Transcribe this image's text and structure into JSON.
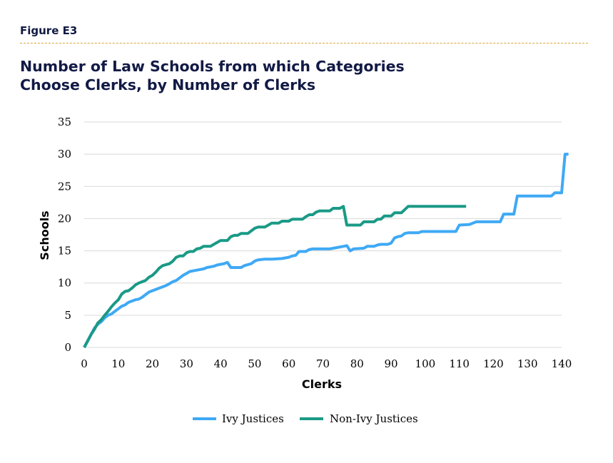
{
  "figure_label": "Figure E3",
  "title_lines": [
    "Number of Law Schools from which Categories",
    "Choose Clerks, by Number of Clerks"
  ],
  "colors": {
    "accent": "#d9a63a",
    "ivy": "#3fa9f5",
    "nonivy": "#1a9a86",
    "grid": "#d9d9d9",
    "title": "#121a45"
  },
  "chart_data": {
    "type": "line",
    "xlabel": "Clerks",
    "ylabel": "Schools",
    "xlim": [
      0,
      140
    ],
    "ylim": [
      0,
      35
    ],
    "x_ticks": [
      0,
      10,
      20,
      30,
      40,
      50,
      60,
      70,
      80,
      90,
      100,
      110,
      120,
      130,
      140
    ],
    "y_ticks": [
      0,
      5,
      10,
      15,
      20,
      25,
      30,
      35
    ],
    "grid": "horizontal",
    "legend_position": "bottom",
    "series": [
      {
        "name": "Ivy Justices",
        "color": "#3fa9f5",
        "points": [
          [
            0,
            0
          ],
          [
            1,
            1
          ],
          [
            2,
            2
          ],
          [
            3,
            3
          ],
          [
            4,
            3.6
          ],
          [
            5,
            4
          ],
          [
            6,
            4.6
          ],
          [
            7,
            5
          ],
          [
            8,
            5.2
          ],
          [
            9,
            5.6
          ],
          [
            10,
            6
          ],
          [
            11,
            6.4
          ],
          [
            12,
            6.6
          ],
          [
            13,
            7
          ],
          [
            14,
            7.2
          ],
          [
            15,
            7.4
          ],
          [
            16,
            7.5
          ],
          [
            17,
            7.8
          ],
          [
            18,
            8.2
          ],
          [
            19,
            8.6
          ],
          [
            20,
            8.8
          ],
          [
            22,
            9.2
          ],
          [
            24,
            9.6
          ],
          [
            25,
            9.9
          ],
          [
            26,
            10.2
          ],
          [
            27,
            10.4
          ],
          [
            28,
            10.8
          ],
          [
            29,
            11.2
          ],
          [
            30,
            11.5
          ],
          [
            31,
            11.8
          ],
          [
            33,
            12
          ],
          [
            35,
            12.2
          ],
          [
            36,
            12.4
          ],
          [
            38,
            12.6
          ],
          [
            39,
            12.8
          ],
          [
            41,
            13
          ],
          [
            42,
            13.2
          ],
          [
            43,
            12.4
          ],
          [
            46,
            12.4
          ],
          [
            47,
            12.7
          ],
          [
            49,
            13
          ],
          [
            50,
            13.4
          ],
          [
            51,
            13.6
          ],
          [
            53,
            13.7
          ],
          [
            55,
            13.7
          ],
          [
            58,
            13.8
          ],
          [
            60,
            14
          ],
          [
            61,
            14.2
          ],
          [
            62,
            14.3
          ],
          [
            63,
            14.9
          ],
          [
            65,
            14.9
          ],
          [
            66,
            15.2
          ],
          [
            67,
            15.3
          ],
          [
            68,
            15.3
          ],
          [
            72,
            15.3
          ],
          [
            74,
            15.5
          ],
          [
            76,
            15.7
          ],
          [
            77,
            15.8
          ],
          [
            78,
            15
          ],
          [
            79,
            15.3
          ],
          [
            82,
            15.4
          ],
          [
            83,
            15.7
          ],
          [
            85,
            15.7
          ],
          [
            86,
            15.9
          ],
          [
            87,
            16
          ],
          [
            89,
            16
          ],
          [
            90,
            16.2
          ],
          [
            91,
            17
          ],
          [
            92,
            17.2
          ],
          [
            93,
            17.3
          ],
          [
            94,
            17.7
          ],
          [
            95,
            17.8
          ],
          [
            98,
            17.8
          ],
          [
            99,
            18
          ],
          [
            109,
            18
          ],
          [
            110,
            19
          ],
          [
            113,
            19.1
          ],
          [
            114,
            19.3
          ],
          [
            115,
            19.5
          ],
          [
            122,
            19.5
          ],
          [
            123,
            20.7
          ],
          [
            126,
            20.7
          ],
          [
            127,
            23.5
          ],
          [
            137,
            23.5
          ],
          [
            138,
            24
          ],
          [
            140,
            24
          ],
          [
            141,
            30
          ],
          [
            142,
            30
          ]
        ]
      },
      {
        "name": "Non-Ivy Justices",
        "color": "#1a9a86",
        "points": [
          [
            0,
            0
          ],
          [
            1,
            1
          ],
          [
            2,
            2
          ],
          [
            3,
            2.8
          ],
          [
            4,
            3.8
          ],
          [
            5,
            4.3
          ],
          [
            6,
            5
          ],
          [
            7,
            5.6
          ],
          [
            8,
            6.3
          ],
          [
            9,
            6.9
          ],
          [
            10,
            7.4
          ],
          [
            11,
            8.3
          ],
          [
            12,
            8.7
          ],
          [
            13,
            8.8
          ],
          [
            14,
            9.2
          ],
          [
            15,
            9.7
          ],
          [
            16,
            10
          ],
          [
            17,
            10.2
          ],
          [
            18,
            10.4
          ],
          [
            19,
            10.9
          ],
          [
            20,
            11.2
          ],
          [
            21,
            11.7
          ],
          [
            22,
            12.3
          ],
          [
            23,
            12.7
          ],
          [
            25,
            13
          ],
          [
            26,
            13.4
          ],
          [
            27,
            14
          ],
          [
            28,
            14.2
          ],
          [
            29,
            14.2
          ],
          [
            30,
            14.7
          ],
          [
            31,
            14.9
          ],
          [
            32,
            14.9
          ],
          [
            33,
            15.3
          ],
          [
            34,
            15.4
          ],
          [
            35,
            15.7
          ],
          [
            37,
            15.7
          ],
          [
            38,
            16
          ],
          [
            39,
            16.3
          ],
          [
            40,
            16.6
          ],
          [
            42,
            16.6
          ],
          [
            43,
            17.2
          ],
          [
            44,
            17.4
          ],
          [
            45,
            17.4
          ],
          [
            46,
            17.7
          ],
          [
            48,
            17.7
          ],
          [
            49,
            18.1
          ],
          [
            50,
            18.5
          ],
          [
            51,
            18.7
          ],
          [
            53,
            18.7
          ],
          [
            54,
            19
          ],
          [
            55,
            19.3
          ],
          [
            57,
            19.3
          ],
          [
            58,
            19.6
          ],
          [
            60,
            19.6
          ],
          [
            61,
            19.9
          ],
          [
            64,
            19.9
          ],
          [
            65,
            20.3
          ],
          [
            66,
            20.6
          ],
          [
            67,
            20.6
          ],
          [
            68,
            21
          ],
          [
            69,
            21.2
          ],
          [
            72,
            21.2
          ],
          [
            73,
            21.6
          ],
          [
            75,
            21.6
          ],
          [
            76,
            21.9
          ],
          [
            77,
            19
          ],
          [
            81,
            19
          ],
          [
            82,
            19.5
          ],
          [
            85,
            19.5
          ],
          [
            86,
            19.9
          ],
          [
            87,
            19.9
          ],
          [
            88,
            20.4
          ],
          [
            90,
            20.4
          ],
          [
            91,
            20.9
          ],
          [
            93,
            20.9
          ],
          [
            95,
            21.9
          ],
          [
            102,
            21.9
          ],
          [
            112,
            21.9
          ]
        ]
      }
    ]
  }
}
